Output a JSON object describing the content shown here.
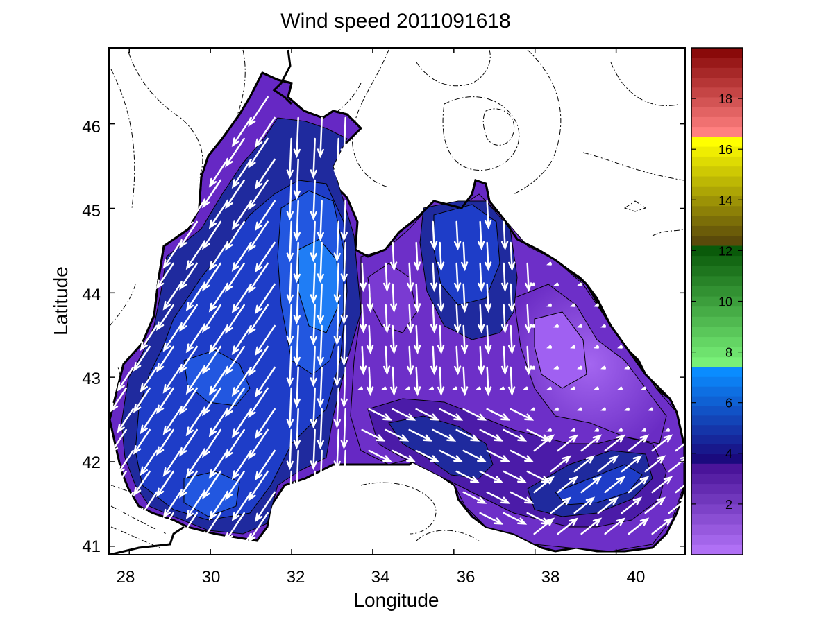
{
  "chart_data": {
    "type": "contour-quiver-map",
    "title": "Wind speed 2011091618",
    "xlabel": "Longitude",
    "ylabel": "Latitude",
    "xlim": [
      27.5,
      41.7
    ],
    "ylim": [
      40.9,
      46.9
    ],
    "x_ticks": [
      "28",
      "30",
      "32",
      "34",
      "36",
      "38",
      "40"
    ],
    "y_ticks": [
      "41",
      "42",
      "43",
      "44",
      "45",
      "46"
    ],
    "colorbar": {
      "range": [
        0,
        20
      ],
      "ticks": [
        "2",
        "4",
        "6",
        "8",
        "10",
        "12",
        "14",
        "16",
        "18"
      ],
      "bands": [
        {
          "from": 0,
          "to": 3.6,
          "from_color": "#b070f5",
          "to_color": "#4a149a"
        },
        {
          "from": 3.6,
          "to": 7.4,
          "from_color": "#1a0a7e",
          "to_color": "#0a8cff"
        },
        {
          "from": 7.4,
          "to": 12.2,
          "from_color": "#78f078",
          "to_color": "#0a5a0a"
        },
        {
          "from": 12.2,
          "to": 16.5,
          "from_color": "#5a4a0a",
          "to_color": "#ffff00"
        },
        {
          "from": 16.5,
          "to": 20,
          "from_color": "#ff8080",
          "to_color": "#8a0a0a"
        }
      ]
    }
  }
}
